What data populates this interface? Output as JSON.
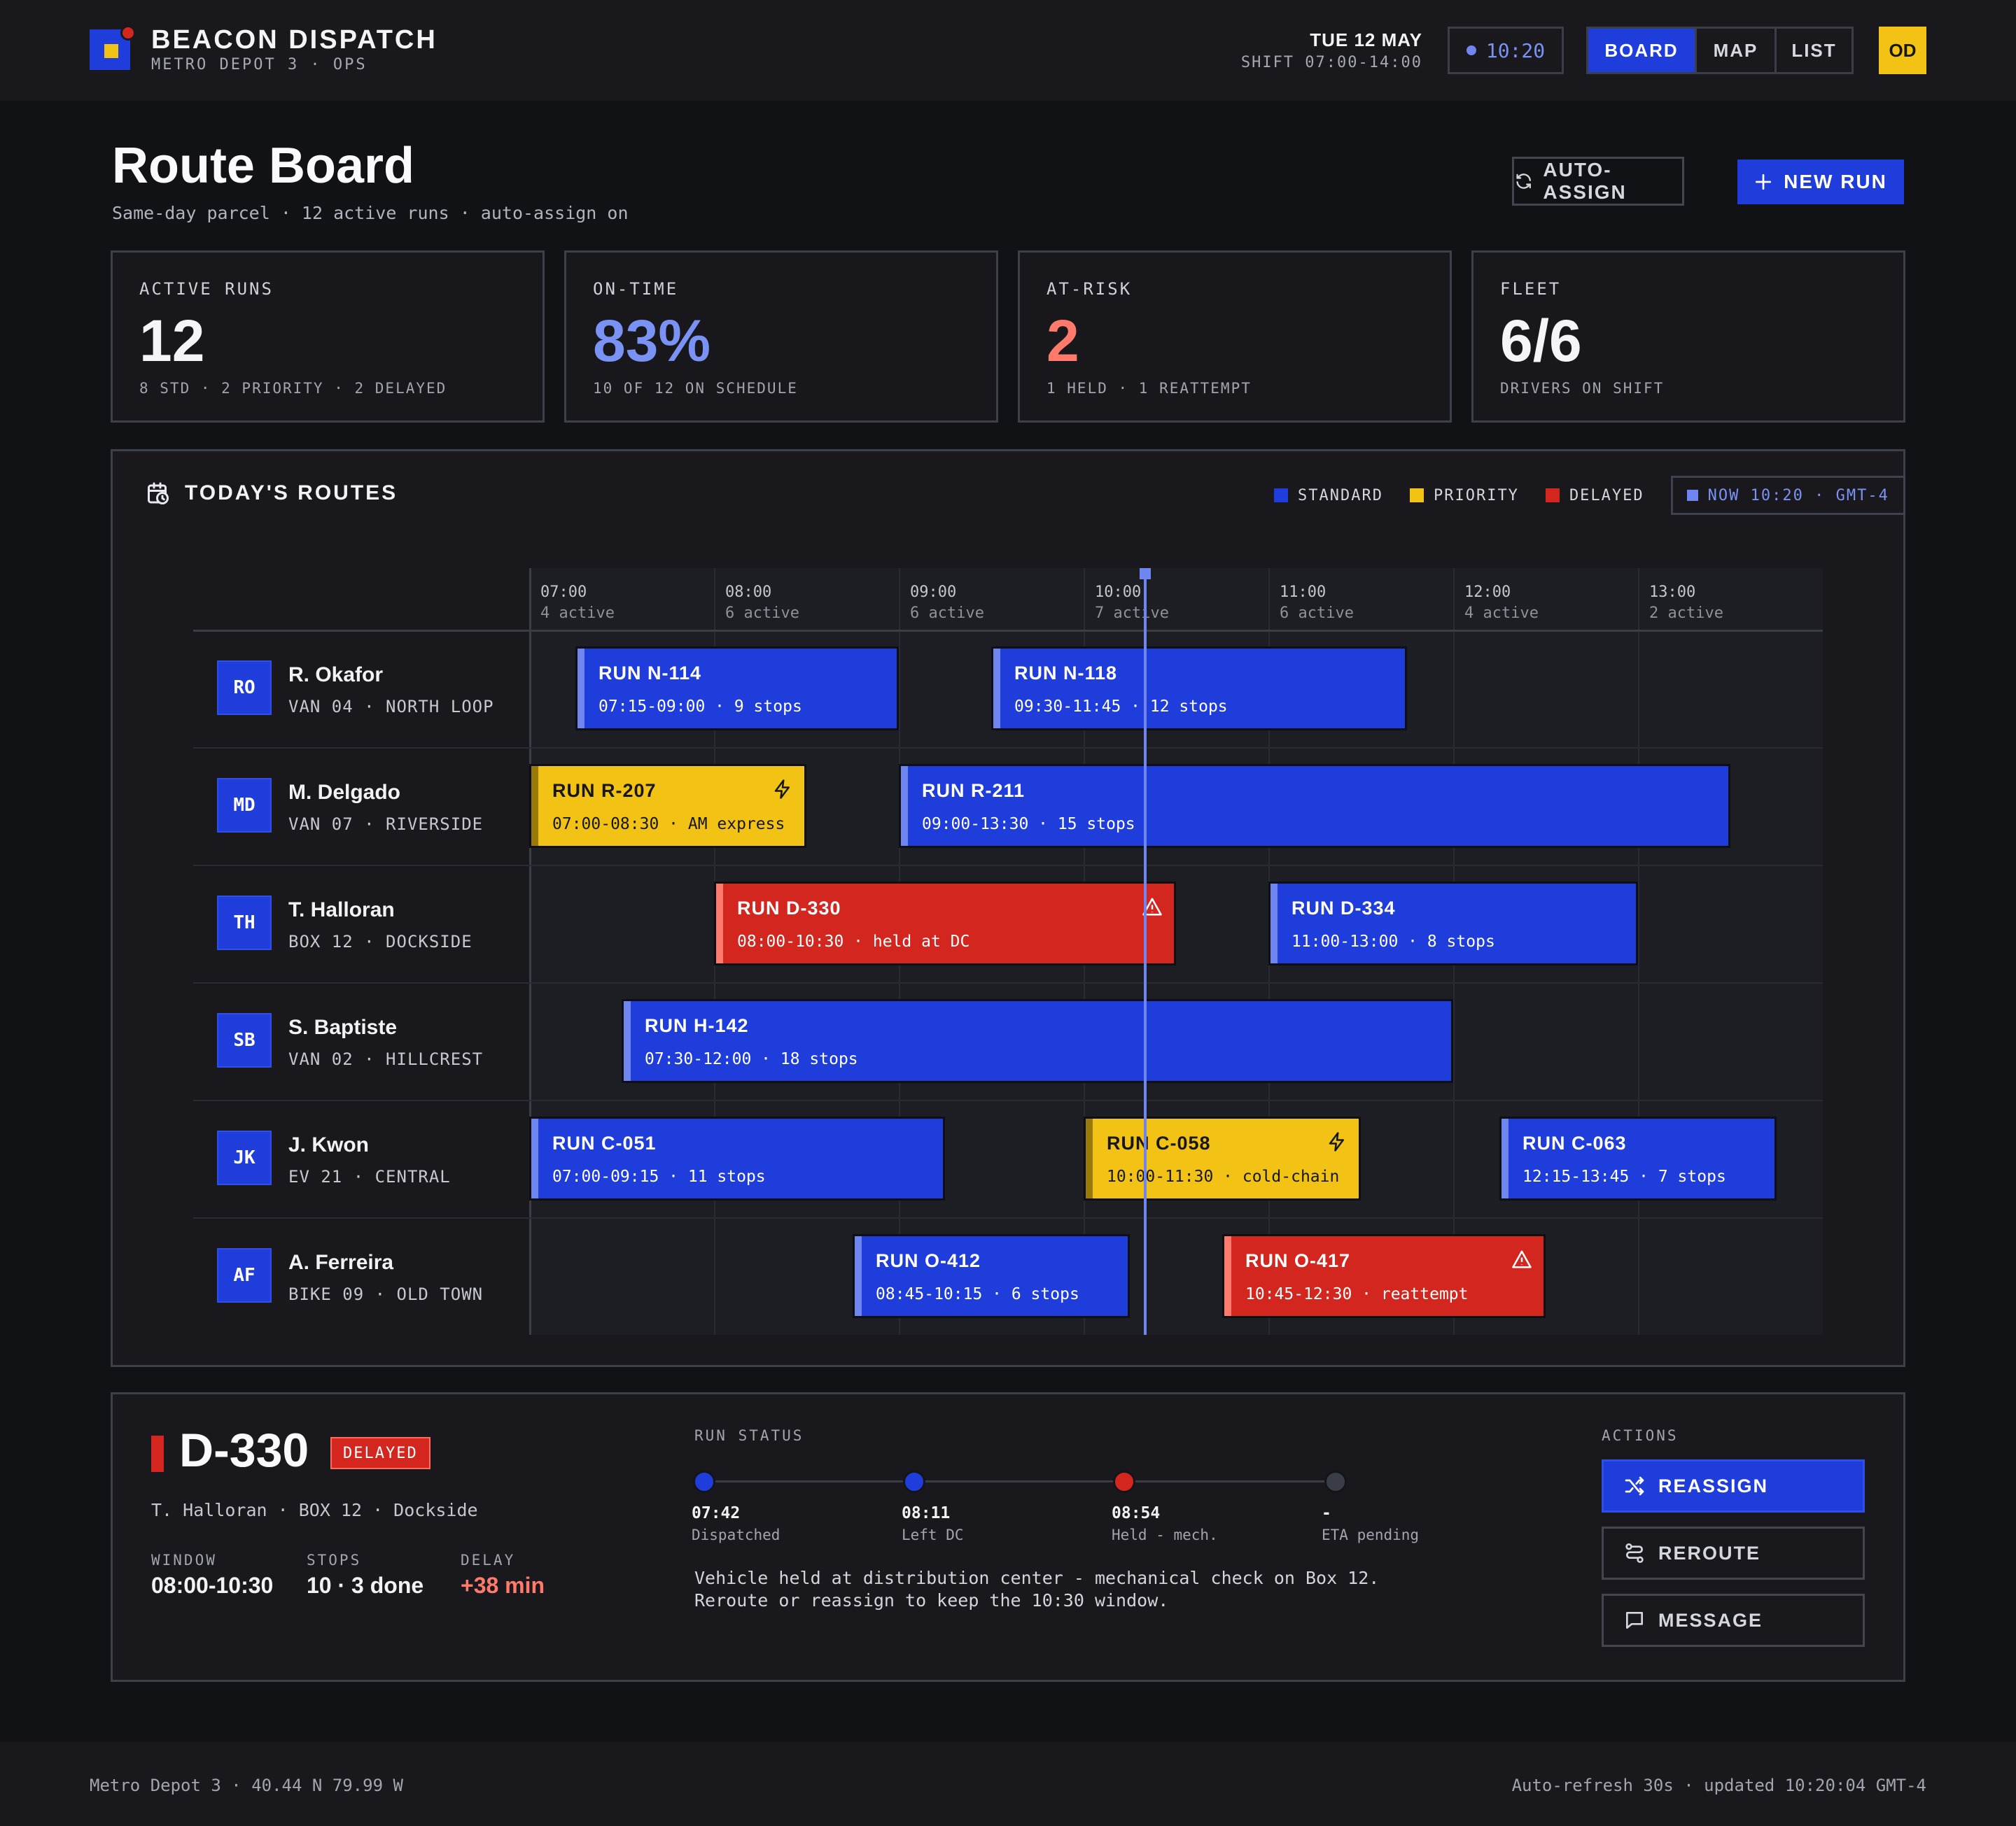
{
  "brand": {
    "title": "BEACON DISPATCH",
    "subtitle": "METRO DEPOT 3 · OPS"
  },
  "topbar": {
    "date": "TUE 12 MAY",
    "shift": "SHIFT 07:00-14:00",
    "clock": "10:20",
    "tabs": [
      "BOARD",
      "MAP",
      "LIST"
    ],
    "active_tab": "BOARD",
    "user_initials": "OD"
  },
  "header": {
    "title": "Route Board",
    "subtitle": "Same-day parcel · 12 active runs · auto-assign on",
    "auto_assign_label": "AUTO-ASSIGN",
    "new_run_label": "NEW RUN"
  },
  "stats": [
    {
      "label": "ACTIVE RUNS",
      "value": "12",
      "sub": "8 STD · 2 PRIORITY · 2 DELAYED",
      "color": "#f5f5f7"
    },
    {
      "label": "ON-TIME",
      "value": "83%",
      "sub": "10 OF 12 ON SCHEDULE",
      "color": "#7b92f5"
    },
    {
      "label": "AT-RISK",
      "value": "2",
      "sub": "1 HELD · 1 REATTEMPT",
      "color": "#ff7a6a"
    },
    {
      "label": "FLEET",
      "value": "6/6",
      "sub": "DRIVERS ON SHIFT",
      "color": "#f5f5f7"
    }
  ],
  "routes": {
    "title": "TODAY'S ROUTES",
    "legend": [
      {
        "label": "STANDARD",
        "color": "#1f3ddb"
      },
      {
        "label": "PRIORITY",
        "color": "#f2c314"
      },
      {
        "label": "DELAYED",
        "color": "#d3261f"
      }
    ],
    "now_label": "NOW 10:20 · GMT-4",
    "hours": [
      {
        "time": "07:00",
        "active": "4 active"
      },
      {
        "time": "08:00",
        "active": "6 active"
      },
      {
        "time": "09:00",
        "active": "6 active"
      },
      {
        "time": "10:00",
        "active": "7 active"
      },
      {
        "time": "11:00",
        "active": "6 active"
      },
      {
        "time": "12:00",
        "active": "4 active"
      },
      {
        "time": "13:00",
        "active": "2 active"
      }
    ],
    "now_hour": 10.3333,
    "drivers": [
      {
        "initials": "RO",
        "name": "R. Okafor",
        "vehicle": "VAN 04 · NORTH LOOP",
        "runs": [
          {
            "title": "RUN N-114",
            "detail": "07:15-09:00 · 9 stops",
            "kind": "std",
            "start": 7.25,
            "end": 9.0
          },
          {
            "title": "RUN N-118",
            "detail": "09:30-11:45 · 12 stops",
            "kind": "std",
            "start": 9.5,
            "end": 11.75
          }
        ]
      },
      {
        "initials": "MD",
        "name": "M. Delgado",
        "vehicle": "VAN 07 · RIVERSIDE",
        "runs": [
          {
            "title": "RUN R-207",
            "detail": "07:00-08:30 · AM express",
            "kind": "pri",
            "start": 7.0,
            "end": 8.5
          },
          {
            "title": "RUN R-211",
            "detail": "09:00-13:30 · 15 stops",
            "kind": "std",
            "start": 9.0,
            "end": 13.5
          }
        ]
      },
      {
        "initials": "TH",
        "name": "T. Halloran",
        "vehicle": "BOX 12 · DOCKSIDE",
        "runs": [
          {
            "title": "RUN D-330",
            "detail": "08:00-10:30 · held at DC",
            "kind": "del",
            "start": 8.0,
            "end": 10.5
          },
          {
            "title": "RUN D-334",
            "detail": "11:00-13:00 · 8 stops",
            "kind": "std",
            "start": 11.0,
            "end": 13.0
          }
        ]
      },
      {
        "initials": "SB",
        "name": "S. Baptiste",
        "vehicle": "VAN 02 · HILLCREST",
        "runs": [
          {
            "title": "RUN H-142",
            "detail": "07:30-12:00 · 18 stops",
            "kind": "std",
            "start": 7.5,
            "end": 12.0
          }
        ]
      },
      {
        "initials": "JK",
        "name": "J. Kwon",
        "vehicle": "EV 21 · CENTRAL",
        "runs": [
          {
            "title": "RUN C-051",
            "detail": "07:00-09:15 · 11 stops",
            "kind": "std",
            "start": 7.0,
            "end": 9.25
          },
          {
            "title": "RUN C-058",
            "detail": "10:00-11:30 · cold-chain",
            "kind": "pri",
            "start": 10.0,
            "end": 11.5
          },
          {
            "title": "RUN C-063",
            "detail": "12:15-13:45 · 7 stops",
            "kind": "std",
            "start": 12.25,
            "end": 13.75
          }
        ]
      },
      {
        "initials": "AF",
        "name": "A. Ferreira",
        "vehicle": "BIKE 09 · OLD TOWN",
        "runs": [
          {
            "title": "RUN O-412",
            "detail": "08:45-10:15 · 6 stops",
            "kind": "std",
            "start": 8.75,
            "end": 10.25
          },
          {
            "title": "RUN O-417",
            "detail": "10:45-12:30 · reattempt",
            "kind": "del",
            "start": 10.75,
            "end": 12.5
          }
        ]
      }
    ]
  },
  "detail": {
    "id": "D-330",
    "badge": "DELAYED",
    "sub": "T. Halloran · BOX 12 · Dockside",
    "fields": [
      {
        "label": "WINDOW",
        "value": "08:00-10:30",
        "color": "#f2f2f5"
      },
      {
        "label": "STOPS",
        "value": "10 · 3 done",
        "color": "#f2f2f5"
      },
      {
        "label": "DELAY",
        "value": "+38 min",
        "color": "#ff7a6a"
      }
    ],
    "status_label": "RUN STATUS",
    "steps": [
      {
        "time": "07:42",
        "label": "Dispatched",
        "color": "#1f3ddb"
      },
      {
        "time": "08:11",
        "label": "Left DC",
        "color": "#1f3ddb"
      },
      {
        "time": "08:54",
        "label": "Held - mech.",
        "color": "#d3261f"
      },
      {
        "time": "-",
        "label": "ETA pending",
        "color": "#3a3c46"
      }
    ],
    "message_line1": "Vehicle held at distribution center - mechanical check on Box 12.",
    "message_line2": "Reroute or reassign to keep the 10:30 window.",
    "actions_label": "ACTIONS",
    "actions": [
      "REASSIGN",
      "REROUTE",
      "MESSAGE"
    ]
  },
  "footer": {
    "left": "Metro Depot 3 · 40.44 N 79.99 W",
    "right": "Auto-refresh 30s · updated 10:20:04 GMT-4"
  }
}
